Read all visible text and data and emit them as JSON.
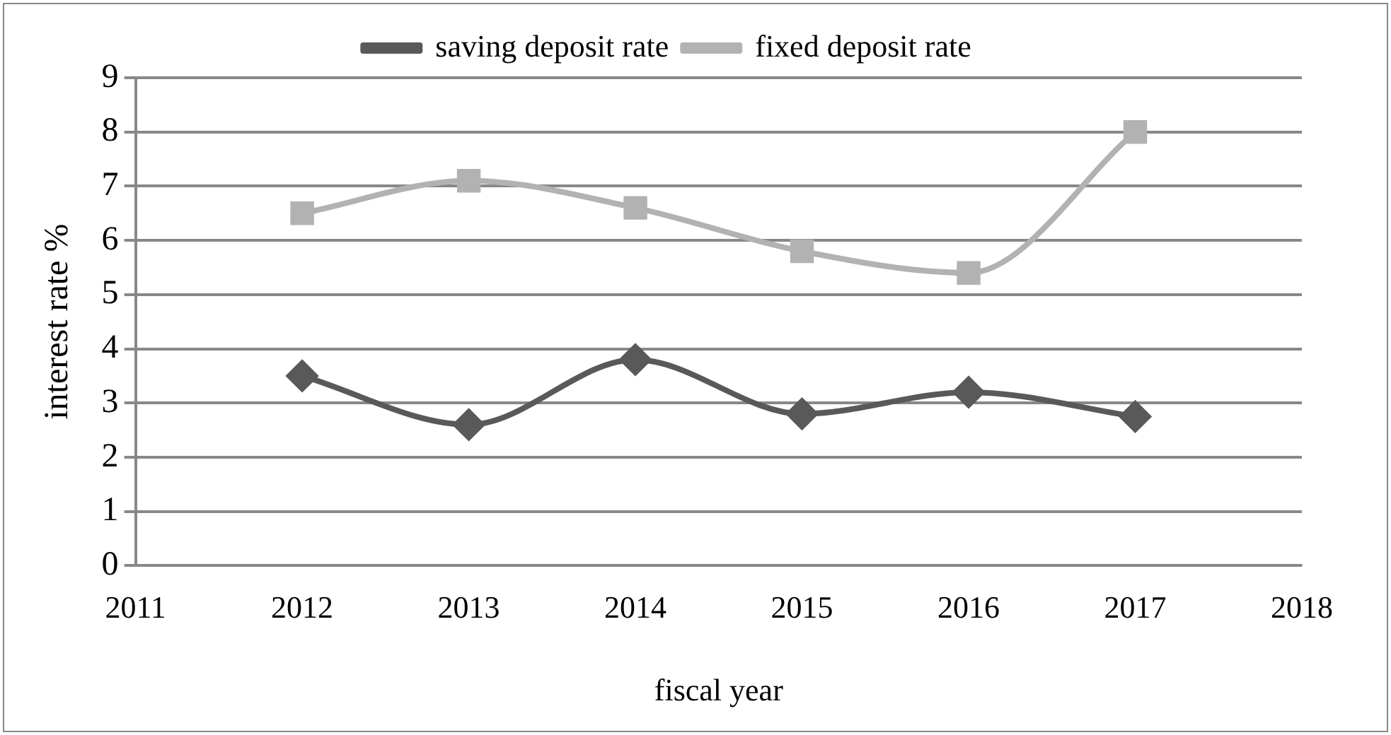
{
  "chart_data": {
    "type": "line",
    "xlabel": "fiscal year",
    "ylabel": "interest rate %",
    "x": [
      2012,
      2013,
      2014,
      2015,
      2016,
      2017
    ],
    "series": [
      {
        "name": "saving deposit rate",
        "color": "#595959",
        "marker": "diamond",
        "values": [
          3.5,
          2.6,
          3.8,
          2.8,
          3.2,
          2.75
        ]
      },
      {
        "name": "fixed deposit rate",
        "color": "#b2b2b2",
        "marker": "square",
        "values": [
          6.5,
          7.1,
          6.6,
          5.8,
          5.4,
          8.0
        ]
      }
    ],
    "xlim": [
      2011,
      2018
    ],
    "xticks": [
      2011,
      2012,
      2013,
      2014,
      2015,
      2016,
      2017,
      2018
    ],
    "ylim": [
      0,
      9
    ],
    "yticks": [
      0,
      1,
      2,
      3,
      4,
      5,
      6,
      7,
      8,
      9
    ],
    "grid": "y",
    "legend": "top"
  }
}
